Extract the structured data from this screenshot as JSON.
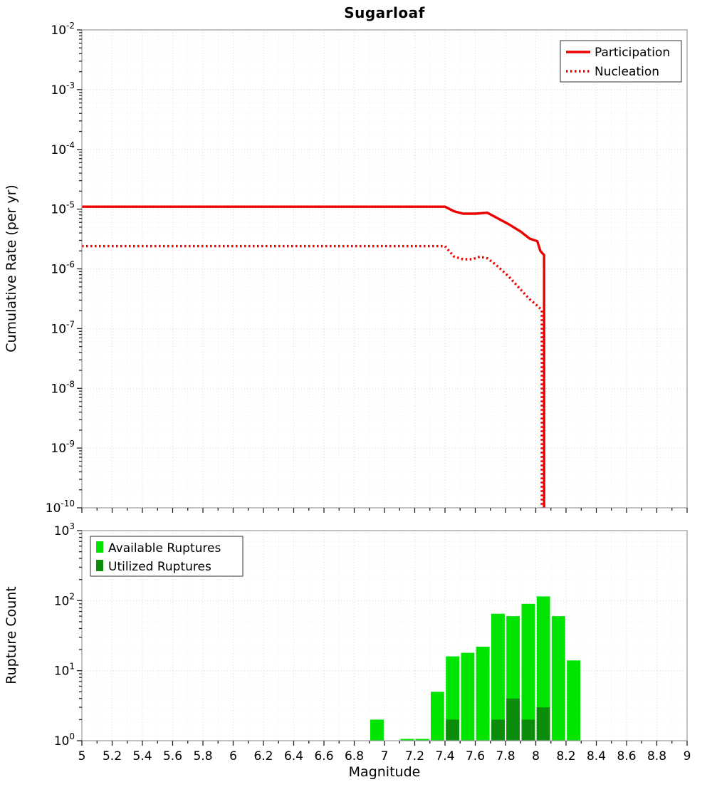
{
  "title": "Sugarloaf",
  "axes": {
    "x": {
      "label": "Magnitude",
      "min": 5,
      "max": 9,
      "major_tick_step": 0.2,
      "minor_tick_step": 0.1,
      "tick_labels": [
        "5",
        "5.2",
        "5.4",
        "5.6",
        "5.8",
        "6",
        "6.2",
        "6.4",
        "6.6",
        "6.8",
        "7",
        "7.2",
        "7.4",
        "7.6",
        "7.8",
        "8",
        "8.2",
        "8.4",
        "8.6",
        "8.8",
        "9"
      ]
    },
    "top_y": {
      "label": "Cumulative Rate (per yr)",
      "scale": "log",
      "tick_exponents": [
        -2,
        -3,
        -4,
        -5,
        -6,
        -7,
        -8,
        -9,
        -10
      ]
    },
    "bottom_y": {
      "label": "Rupture Count",
      "scale": "log",
      "tick_exponents": [
        3,
        2,
        1,
        0
      ]
    }
  },
  "chart_data": [
    {
      "type": "line",
      "title": "Sugarloaf",
      "ylabel": "Cumulative Rate (per yr)",
      "xlim": [
        5,
        9
      ],
      "ylim": [
        1e-10,
        0.01
      ],
      "yscale": "log",
      "grid": true,
      "legend_position": "top-right",
      "series": [
        {
          "name": "Participation",
          "color": "#ee0000",
          "line_style": "solid",
          "points": [
            [
              5,
              1.1e-05
            ],
            [
              7.4,
              1.1e-05
            ],
            [
              7.46,
              9.2e-06
            ],
            [
              7.52,
              8.4e-06
            ],
            [
              7.6,
              8.4e-06
            ],
            [
              7.68,
              8.7e-06
            ],
            [
              7.74,
              7.2e-06
            ],
            [
              7.82,
              5.6e-06
            ],
            [
              7.9,
              4.2e-06
            ],
            [
              7.96,
              3.2e-06
            ],
            [
              8.01,
              2.9e-06
            ],
            [
              8.03,
              2e-06
            ],
            [
              8.055,
              1.7e-06
            ],
            [
              8.055,
              1e-10
            ]
          ]
        },
        {
          "name": "Nucleation",
          "color": "#ee0000",
          "line_style": "dotted",
          "points": [
            [
              5,
              2.4e-06
            ],
            [
              7.4,
              2.4e-06
            ],
            [
              7.46,
              1.6e-06
            ],
            [
              7.52,
              1.45e-06
            ],
            [
              7.58,
              1.45e-06
            ],
            [
              7.63,
              1.6e-06
            ],
            [
              7.68,
              1.5e-06
            ],
            [
              7.74,
              1.15e-06
            ],
            [
              7.82,
              7.5e-07
            ],
            [
              7.9,
              4.5e-07
            ],
            [
              7.96,
              3.1e-07
            ],
            [
              8.02,
              2.3e-07
            ],
            [
              8.04,
              2e-07
            ],
            [
              8.04,
              1e-10
            ]
          ]
        }
      ]
    },
    {
      "type": "bar",
      "ylabel": "Rupture Count",
      "xlabel": "Magnitude",
      "xlim": [
        5,
        9
      ],
      "ylim": [
        1,
        1000
      ],
      "yscale": "log",
      "bin_width": 0.1,
      "legend_position": "top-left",
      "series": [
        {
          "name": "Available Ruptures",
          "color": "#00e400",
          "bars": [
            [
              6.9,
              2
            ],
            [
              7.1,
              1
            ],
            [
              7.2,
              1
            ],
            [
              7.3,
              5
            ],
            [
              7.4,
              16
            ],
            [
              7.5,
              18
            ],
            [
              7.6,
              22
            ],
            [
              7.7,
              65
            ],
            [
              7.8,
              60
            ],
            [
              7.9,
              90
            ],
            [
              8.0,
              115
            ],
            [
              8.1,
              60
            ],
            [
              8.2,
              14
            ]
          ]
        },
        {
          "name": "Utilized Ruptures",
          "color": "#0b8c0b",
          "bars": [
            [
              7.4,
              2
            ],
            [
              7.7,
              2
            ],
            [
              7.8,
              4
            ],
            [
              7.9,
              2
            ],
            [
              8.0,
              3
            ]
          ]
        }
      ]
    }
  ]
}
